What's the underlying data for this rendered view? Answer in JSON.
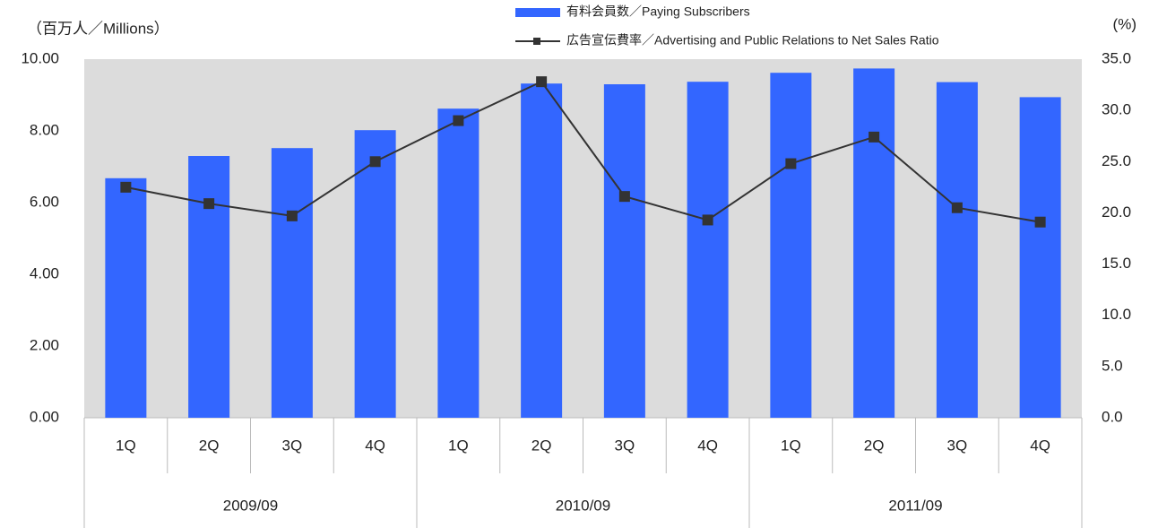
{
  "chart_data": {
    "type": "bar_line",
    "y_label": "（百万人／Millions）",
    "y2_label": "(%)",
    "categories": [
      "1Q",
      "2Q",
      "3Q",
      "4Q",
      "1Q",
      "2Q",
      "3Q",
      "4Q",
      "1Q",
      "2Q",
      "3Q",
      "4Q"
    ],
    "groups": [
      "2009/09",
      "2010/09",
      "2011/09"
    ],
    "series": [
      {
        "name": "有料会員数／Paying Subscribers",
        "type": "bar",
        "color": "#3366ff",
        "values": [
          6.68,
          7.3,
          7.52,
          8.02,
          8.62,
          9.32,
          9.3,
          9.37,
          9.62,
          9.74,
          9.36,
          8.94
        ]
      },
      {
        "name": "広告宣伝費率／Advertising and Public Relations to Net Sales Ratio",
        "type": "line",
        "color": "#333333",
        "axis": "y2",
        "values": [
          22.5,
          20.9,
          19.7,
          25.0,
          29.0,
          32.8,
          21.6,
          19.3,
          24.8,
          27.4,
          20.5,
          19.1
        ]
      }
    ],
    "ylim": [
      0,
      10
    ],
    "yticks": [
      {
        "value": 0,
        "label": "0.00"
      },
      {
        "value": 2,
        "label": "2.00"
      },
      {
        "value": 4,
        "label": "4.00"
      },
      {
        "value": 6,
        "label": "6.00"
      },
      {
        "value": 8,
        "label": "8.00"
      },
      {
        "value": 10,
        "label": "10.00"
      }
    ],
    "y2lim": [
      0,
      35
    ],
    "y2ticks": [
      {
        "value": 0,
        "label": "0.0"
      },
      {
        "value": 5,
        "label": "5.0"
      },
      {
        "value": 10,
        "label": "10.0"
      },
      {
        "value": 15,
        "label": "15.0"
      },
      {
        "value": 20,
        "label": "20.0"
      },
      {
        "value": 25,
        "label": "25.0"
      },
      {
        "value": 30,
        "label": "30.0"
      },
      {
        "value": 35,
        "label": "35.0"
      }
    ],
    "plot_background": "#dcdcdc"
  }
}
